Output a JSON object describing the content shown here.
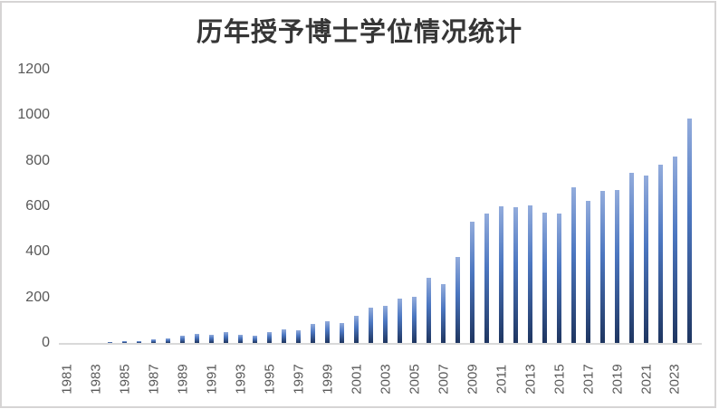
{
  "title": "历年授予博士学位情况统计",
  "colors": {
    "bar_gradient_top": "#93acdc",
    "bar_gradient_mid": "#4c77c1",
    "bar_gradient_bottom": "#1e3560",
    "axis_line": "#d9d9d9",
    "tick_label": "#595959",
    "title_text": "#363636",
    "chart_border": "#d6d4d4",
    "background": "#ffffff"
  },
  "chart_data": {
    "type": "bar",
    "title": "历年授予博士学位情况统计",
    "xlabel": "",
    "ylabel": "",
    "categories": [
      1981,
      1982,
      1983,
      1984,
      1985,
      1986,
      1987,
      1988,
      1989,
      1990,
      1991,
      1992,
      1993,
      1994,
      1995,
      1996,
      1997,
      1998,
      1999,
      2000,
      2001,
      2002,
      2003,
      2004,
      2005,
      2006,
      2007,
      2008,
      2009,
      2010,
      2011,
      2012,
      2013,
      2014,
      2015,
      2016,
      2017,
      2018,
      2019,
      2020,
      2021,
      2022,
      2023,
      2024
    ],
    "values": [
      0,
      0,
      0,
      6,
      10,
      7,
      17,
      21,
      31,
      39,
      36,
      47,
      37,
      31,
      49,
      61,
      57,
      83,
      95,
      87,
      118,
      156,
      165,
      196,
      203,
      285,
      258,
      377,
      533,
      568,
      601,
      597,
      605,
      573,
      569,
      685,
      626,
      669,
      673,
      748,
      735,
      781,
      817,
      986
    ],
    "ylim": [
      0,
      1200
    ],
    "yticks": [
      0,
      200,
      400,
      600,
      800,
      1000,
      1200
    ],
    "x_tick_labels": [
      "1981",
      "1983",
      "1985",
      "1987",
      "1989",
      "1991",
      "1993",
      "1995",
      "1997",
      "1999",
      "2001",
      "2003",
      "2005",
      "2007",
      "2009",
      "2011",
      "2013",
      "2015",
      "2017",
      "2019",
      "2021",
      "2023"
    ],
    "x_tick_rotation_deg": -90,
    "grid": false,
    "legend": false,
    "bar_color_style": "vertical gradient, light blue top to dark navy bottom"
  }
}
